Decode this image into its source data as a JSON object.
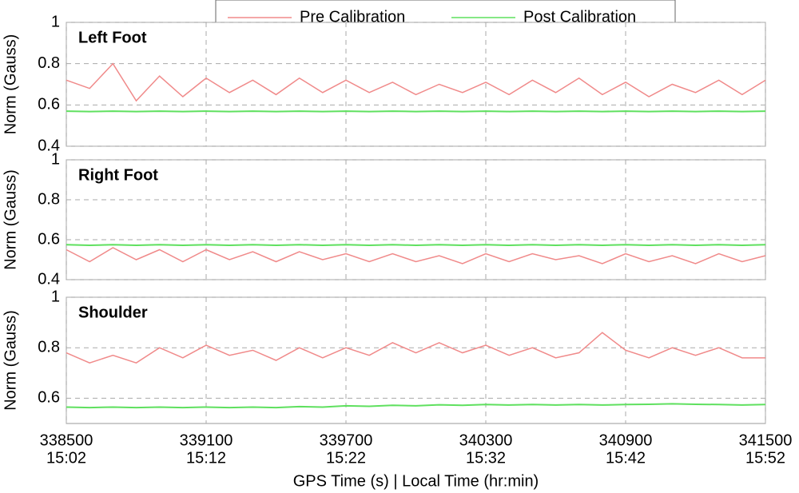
{
  "chart_data": [
    {
      "type": "line",
      "title": "Left Foot",
      "ylabel": "Norm (Gauss)",
      "x": [
        338500,
        338600,
        338700,
        338800,
        338900,
        339000,
        339100,
        339200,
        339300,
        339400,
        339500,
        339600,
        339700,
        339800,
        339900,
        340000,
        340100,
        340200,
        340300,
        340400,
        340500,
        340600,
        340700,
        340800,
        340900,
        341000,
        341100,
        341200,
        341300,
        341400,
        341500
      ],
      "series": [
        {
          "name": "Pre Calibration",
          "color": "#f08a8a",
          "values": [
            0.72,
            0.68,
            0.8,
            0.62,
            0.74,
            0.64,
            0.73,
            0.66,
            0.72,
            0.65,
            0.73,
            0.66,
            0.72,
            0.66,
            0.71,
            0.65,
            0.7,
            0.66,
            0.71,
            0.65,
            0.72,
            0.66,
            0.73,
            0.65,
            0.71,
            0.64,
            0.7,
            0.66,
            0.72,
            0.65,
            0.72
          ]
        },
        {
          "name": "Post Calibration",
          "color": "#5fe05f",
          "values": [
            0.57,
            0.568,
            0.57,
            0.568,
            0.57,
            0.568,
            0.57,
            0.568,
            0.57,
            0.568,
            0.57,
            0.568,
            0.57,
            0.568,
            0.57,
            0.568,
            0.57,
            0.568,
            0.57,
            0.568,
            0.57,
            0.568,
            0.57,
            0.568,
            0.57,
            0.568,
            0.57,
            0.568,
            0.57,
            0.568,
            0.57
          ]
        }
      ],
      "xlim": [
        338500,
        341500
      ],
      "xticks": [
        338500,
        339100,
        339700,
        340300,
        340900,
        341500
      ],
      "ylim": [
        0.4,
        1
      ],
      "yticks": [
        0.4,
        0.6,
        0.8,
        1
      ],
      "grid": true
    },
    {
      "type": "line",
      "title": "Right Foot",
      "ylabel": "Norm (Gauss)",
      "x": [
        338500,
        338600,
        338700,
        338800,
        338900,
        339000,
        339100,
        339200,
        339300,
        339400,
        339500,
        339600,
        339700,
        339800,
        339900,
        340000,
        340100,
        340200,
        340300,
        340400,
        340500,
        340600,
        340700,
        340800,
        340900,
        341000,
        341100,
        341200,
        341300,
        341400,
        341500
      ],
      "series": [
        {
          "color": "#f08a8a",
          "values": [
            0.55,
            0.49,
            0.56,
            0.5,
            0.55,
            0.49,
            0.55,
            0.5,
            0.54,
            0.49,
            0.54,
            0.5,
            0.53,
            0.49,
            0.53,
            0.49,
            0.52,
            0.48,
            0.53,
            0.49,
            0.53,
            0.5,
            0.52,
            0.48,
            0.53,
            0.49,
            0.52,
            0.48,
            0.53,
            0.49,
            0.52
          ]
        },
        {
          "color": "#5fe05f",
          "values": [
            0.575,
            0.572,
            0.575,
            0.572,
            0.575,
            0.572,
            0.575,
            0.572,
            0.575,
            0.572,
            0.575,
            0.572,
            0.575,
            0.572,
            0.575,
            0.572,
            0.575,
            0.572,
            0.575,
            0.572,
            0.575,
            0.572,
            0.575,
            0.572,
            0.575,
            0.572,
            0.575,
            0.572,
            0.575,
            0.572,
            0.575
          ]
        }
      ],
      "xlim": [
        338500,
        341500
      ],
      "xticks": [
        338500,
        339100,
        339700,
        340300,
        340900,
        341500
      ],
      "ylim": [
        0.4,
        1
      ],
      "yticks": [
        0.4,
        0.6,
        0.8,
        1
      ],
      "grid": true
    },
    {
      "type": "line",
      "title": "Shoulder",
      "ylabel": "Norm (Gauss)",
      "xlabel": "GPS Time (s) | Local Time (hr:min)",
      "x": [
        338500,
        338600,
        338700,
        338800,
        338900,
        339000,
        339100,
        339200,
        339300,
        339400,
        339500,
        339600,
        339700,
        339800,
        339900,
        340000,
        340100,
        340200,
        340300,
        340400,
        340500,
        340600,
        340700,
        340800,
        340900,
        341000,
        341100,
        341200,
        341300,
        341400,
        341500
      ],
      "series": [
        {
          "color": "#f08a8a",
          "values": [
            0.78,
            0.74,
            0.77,
            0.74,
            0.8,
            0.76,
            0.81,
            0.77,
            0.79,
            0.75,
            0.8,
            0.76,
            0.8,
            0.77,
            0.82,
            0.78,
            0.82,
            0.78,
            0.81,
            0.77,
            0.8,
            0.76,
            0.78,
            0.86,
            0.79,
            0.76,
            0.8,
            0.77,
            0.8,
            0.76,
            0.76
          ]
        },
        {
          "color": "#5fe05f",
          "values": [
            0.565,
            0.563,
            0.565,
            0.563,
            0.565,
            0.563,
            0.565,
            0.563,
            0.565,
            0.563,
            0.567,
            0.565,
            0.57,
            0.568,
            0.572,
            0.57,
            0.574,
            0.572,
            0.575,
            0.573,
            0.575,
            0.573,
            0.575,
            0.573,
            0.575,
            0.576,
            0.578,
            0.576,
            0.575,
            0.573,
            0.575
          ]
        }
      ],
      "xlim": [
        338500,
        341500
      ],
      "xticks": [
        338500,
        339100,
        339700,
        340300,
        340900,
        341500
      ],
      "xtick_times": [
        "15:02",
        "15:12",
        "15:22",
        "15:32",
        "15:42",
        "15:52"
      ],
      "ylim": [
        0.5,
        1
      ],
      "yticks": [
        0.6,
        0.8,
        1
      ],
      "grid": true
    }
  ]
}
